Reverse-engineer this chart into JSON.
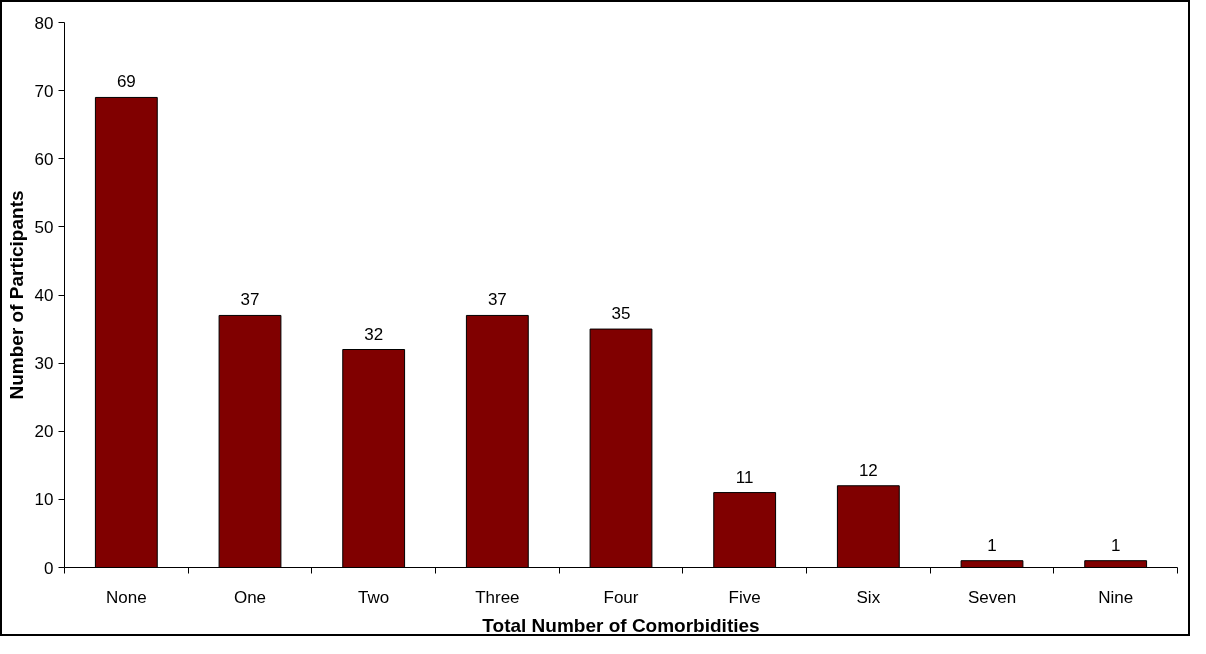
{
  "chart_data": {
    "type": "bar",
    "xlabel": "Total Number of Comorbidities",
    "ylabel": "Number of Participants",
    "categories": [
      "None",
      "One",
      "Two",
      "Three",
      "Four",
      "Five",
      "Six",
      "Seven",
      "Nine"
    ],
    "values": [
      69,
      37,
      32,
      37,
      35,
      11,
      12,
      1,
      1
    ],
    "color": "#800000",
    "data_labels": true,
    "grid": false,
    "ylim": [
      0,
      80
    ],
    "yticks": [
      0,
      10,
      20,
      30,
      40,
      50,
      60,
      70,
      80
    ]
  }
}
